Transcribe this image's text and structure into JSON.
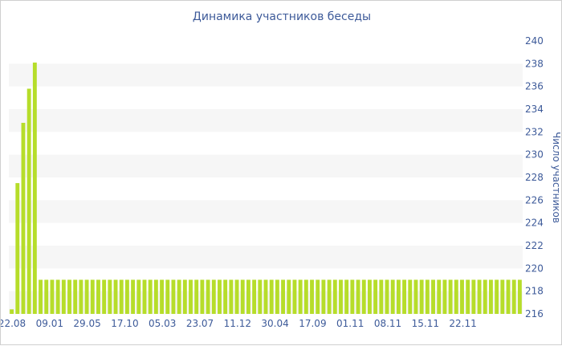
{
  "chart_data": {
    "type": "bar",
    "title": "Динамика участников беседы",
    "ylabel": "Число участников",
    "ylim": [
      216,
      240
    ],
    "yticks": [
      216,
      218,
      220,
      222,
      224,
      226,
      228,
      230,
      232,
      234,
      236,
      238,
      240
    ],
    "xtick_labels": [
      "22.08",
      "09.01",
      "29.05",
      "17.10",
      "05.03",
      "23.07",
      "11.12",
      "30.04",
      "17.09",
      "01.11",
      "08.11",
      "15.11",
      "22.11"
    ],
    "bar_color": "#b6dd2a",
    "band_color": "#f6f6f6",
    "grid": "alternating horizontal bands",
    "axis_position": "right",
    "values": [
      216.4,
      227.5,
      232.8,
      235.8,
      238.1,
      219.0,
      219.0,
      219.0,
      219.0,
      219.0,
      219.0,
      219.0,
      219.0,
      219.0,
      219.0,
      219.0,
      219.0,
      219.0,
      219.0,
      219.0,
      219.0,
      219.0,
      219.0,
      219.0,
      219.0,
      219.0,
      219.0,
      219.0,
      219.0,
      219.0,
      219.0,
      219.0,
      219.0,
      219.0,
      219.0,
      219.0,
      219.0,
      219.0,
      219.0,
      219.0,
      219.0,
      219.0,
      219.0,
      219.0,
      219.0,
      219.0,
      219.0,
      219.0,
      219.0,
      219.0,
      219.0,
      219.0,
      219.0,
      219.0,
      219.0,
      219.0,
      219.0,
      219.0,
      219.0,
      219.0,
      219.0,
      219.0,
      219.0,
      219.0,
      219.0,
      219.0,
      219.0,
      219.0,
      219.0,
      219.0,
      219.0,
      219.0,
      219.0,
      219.0,
      219.0,
      219.0,
      219.0,
      219.0,
      219.0,
      219.0,
      219.0,
      219.0,
      219.0,
      219.0,
      219.0,
      219.0,
      219.0,
      219.0,
      219.0
    ]
  }
}
